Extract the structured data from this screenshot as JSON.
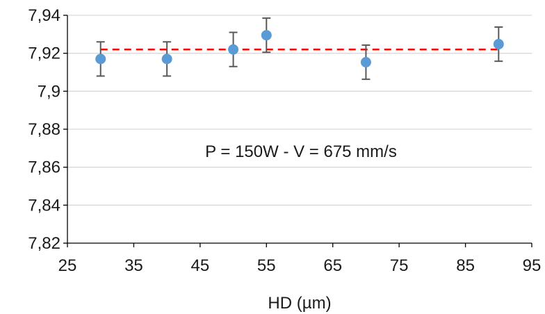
{
  "chart_data": {
    "type": "scatter",
    "title": "",
    "xlabel": "HD (µm)",
    "ylabel": "",
    "xlim": [
      25,
      95
    ],
    "ylim": [
      7.82,
      7.94
    ],
    "x_ticks": [
      25,
      35,
      45,
      55,
      65,
      75,
      85,
      95
    ],
    "x_tick_labels": [
      "25",
      "35",
      "45",
      "55",
      "65",
      "75",
      "85",
      "95"
    ],
    "y_ticks": [
      7.82,
      7.84,
      7.86,
      7.88,
      7.9,
      7.92,
      7.94
    ],
    "y_tick_labels": [
      "7,82",
      "7,84",
      "7,86",
      "7,88",
      "7,9",
      "7,92",
      "7,94"
    ],
    "grid": "horizontal",
    "series": [
      {
        "x": [
          30,
          40,
          50,
          55,
          70,
          90
        ],
        "y": [
          7.917,
          7.917,
          7.922,
          7.9295,
          7.9153,
          7.9248
        ],
        "error": [
          0.009,
          0.009,
          0.009,
          0.009,
          0.009,
          0.009
        ],
        "color": "#5b9bd5",
        "error_bar_color": "#595959"
      }
    ],
    "reference_line": {
      "y": 7.922,
      "x_range": [
        30,
        90
      ],
      "style": "dashed",
      "color": "#ff0000"
    },
    "annotation": "P = 150W - V = 675 mm/s"
  }
}
